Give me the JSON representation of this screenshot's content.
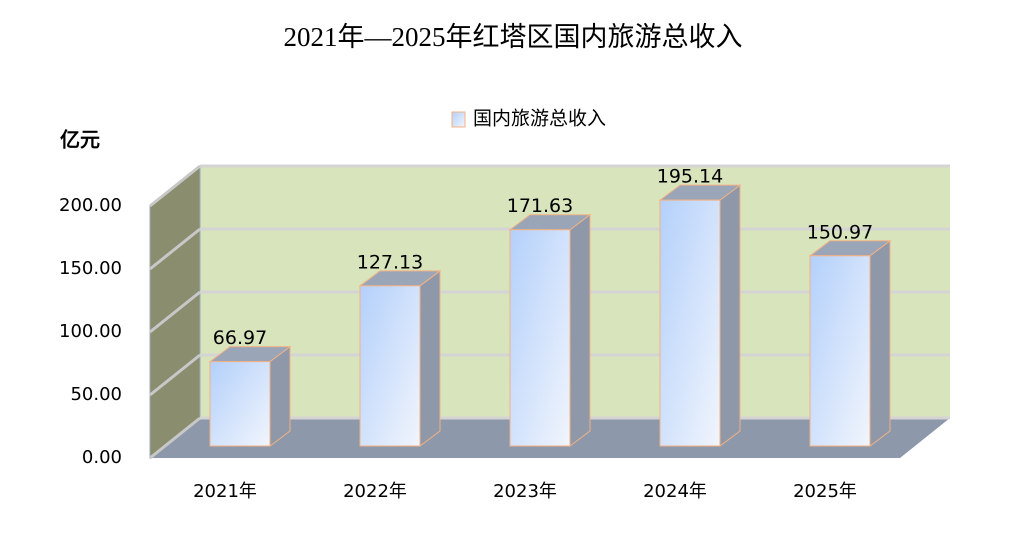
{
  "chart_data": {
    "type": "bar3d",
    "title": "2021年—2025年红塔区国内旅游总收入",
    "y_axis_label": "亿元",
    "categories": [
      "2021年",
      "2022年",
      "2023年",
      "2024年",
      "2025年"
    ],
    "series": [
      {
        "name": "国内旅游总收入",
        "color": "#c6dbfa",
        "values": [
          66.97,
          127.13,
          171.63,
          195.14,
          150.97
        ]
      }
    ],
    "ylim": [
      0,
      200
    ],
    "yticks": [
      {
        "value": 0,
        "label": "0.00"
      },
      {
        "value": 50,
        "label": "50.00"
      },
      {
        "value": 100,
        "label": "100.00"
      },
      {
        "value": 150,
        "label": "150.00"
      },
      {
        "value": 200,
        "label": "200.00"
      }
    ],
    "grid": true,
    "legend": "top"
  }
}
